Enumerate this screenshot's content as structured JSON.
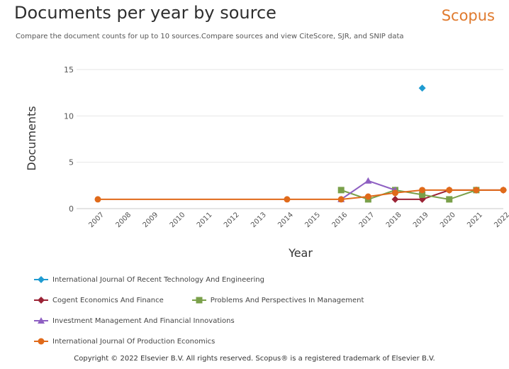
{
  "header": {
    "title": "Documents per year by source",
    "brand": "Scopus",
    "subtitle": "Compare the document counts for up to 10 sources.Compare sources and view CiteScore, SJR, and SNIP data"
  },
  "footer": {
    "copyright": "Copyright © 2022 Elsevier B.V. All rights reserved. Scopus® is a registered trademark of Elsevier B.V."
  },
  "chart_data": {
    "type": "line",
    "title": "Documents per year by source",
    "xlabel": "Year",
    "ylabel": "Documents",
    "x": [
      2007,
      2008,
      2009,
      2010,
      2011,
      2012,
      2013,
      2014,
      2015,
      2016,
      2017,
      2018,
      2019,
      2020,
      2021,
      2022
    ],
    "x_ticks": [
      "2007",
      "2008",
      "2009",
      "2010",
      "2011",
      "2012",
      "2013",
      "2014",
      "2015",
      "2016",
      "2017",
      "2018",
      "2019",
      "2020",
      "2021",
      "2022"
    ],
    "ylim": [
      0,
      15
    ],
    "y_ticks": [
      0,
      5,
      10,
      15
    ],
    "grid": true,
    "legend_position": "bottom",
    "series": [
      {
        "name": "International Journal Of Recent Technology And Engineering",
        "color": "#1f9bd1",
        "marker": "diamond",
        "points": [
          [
            2019,
            13
          ]
        ]
      },
      {
        "name": "Cogent Economics And Finance",
        "color": "#9b2335",
        "marker": "diamond",
        "points": [
          [
            2018,
            1
          ],
          [
            2019,
            1
          ],
          [
            2020,
            2
          ],
          [
            2021,
            2
          ],
          [
            2022,
            2
          ]
        ]
      },
      {
        "name": "Problems And Perspectives In Management",
        "color": "#7aa04a",
        "marker": "square",
        "points": [
          [
            2016,
            2
          ],
          [
            2017,
            1
          ],
          [
            2018,
            2
          ],
          [
            2019,
            1.5
          ],
          [
            2020,
            1
          ],
          [
            2021,
            2
          ]
        ]
      },
      {
        "name": "Investment Management And Financial Innovations",
        "color": "#8e5fc2",
        "marker": "triangle",
        "points": [
          [
            2016,
            1
          ],
          [
            2017,
            3
          ],
          [
            2018,
            2
          ]
        ]
      },
      {
        "name": "International Journal Of Production Economics",
        "color": "#e06a1a",
        "marker": "circle",
        "points": [
          [
            2007,
            1
          ],
          [
            2014,
            1
          ],
          [
            2016,
            1
          ],
          [
            2017,
            1.3
          ],
          [
            2018,
            1.7
          ],
          [
            2019,
            2
          ],
          [
            2020,
            2
          ],
          [
            2021,
            2
          ],
          [
            2022,
            2
          ]
        ]
      }
    ]
  }
}
